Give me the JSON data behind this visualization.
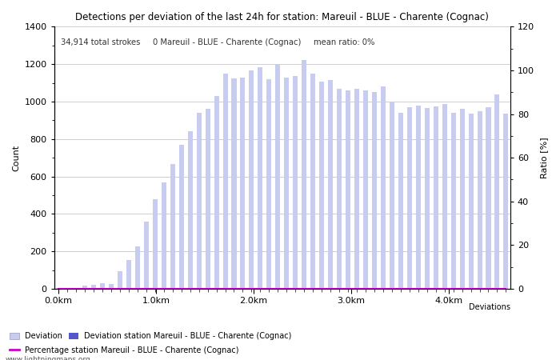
{
  "title": "Detections per deviation of the last 24h for station: Mareuil - BLUE - Charente (Cognac)",
  "annotation": "34,914 total strokes     0 Mareuil - BLUE - Charente (Cognac)     mean ratio: 0%",
  "ylabel_left": "Count",
  "ylabel_right": "Ratio [%]",
  "x_tick_labels": [
    "0.0km",
    "1.0km",
    "2.0km",
    "3.0km",
    "4.0km"
  ],
  "ylim_left": [
    0,
    1400
  ],
  "ylim_right": [
    0,
    120
  ],
  "yticks_left": [
    0,
    200,
    400,
    600,
    800,
    1000,
    1200,
    1400
  ],
  "yticks_right": [
    0,
    20,
    40,
    60,
    80,
    100,
    120
  ],
  "bar_color_light": "#c8ccf0",
  "bar_color_dark": "#5555cc",
  "line_color": "#cc00cc",
  "background_color": "#ffffff",
  "grid_color": "#bbbbbb",
  "watermark": "www.lightningmaps.org",
  "legend_label_deviation": "Deviation",
  "legend_label_station": "Deviation station Mareuil - BLUE - Charente (Cognac)",
  "legend_label_percentage": "Percentage station Mareuil - BLUE - Charente (Cognac)",
  "deviation_bars": [
    2,
    5,
    5,
    15,
    20,
    30,
    25,
    95,
    155,
    225,
    360,
    480,
    570,
    665,
    770,
    840,
    940,
    960,
    1030,
    1150,
    1125,
    1130,
    1165,
    1185,
    1120,
    1195,
    1130,
    1135,
    1220,
    1150,
    1105,
    1115,
    1070,
    1060,
    1070,
    1060,
    1050,
    1080,
    1000,
    940,
    970,
    980,
    965,
    975,
    985,
    940,
    960,
    935,
    950,
    970,
    1040,
    935
  ],
  "station_bars": [
    0,
    0,
    0,
    0,
    0,
    0,
    0,
    0,
    0,
    0,
    0,
    0,
    0,
    0,
    0,
    0,
    0,
    0,
    0,
    0,
    0,
    0,
    0,
    0,
    0,
    0,
    0,
    0,
    0,
    0,
    0,
    0,
    0,
    0,
    0,
    0,
    0,
    0,
    0,
    0,
    0,
    0,
    0,
    0,
    0,
    0,
    0,
    0,
    0,
    0,
    0,
    0
  ],
  "ratio_line": [
    0,
    0,
    0,
    0,
    0,
    0,
    0,
    0,
    0,
    0,
    0,
    0,
    0,
    0,
    0,
    0,
    0,
    0,
    0,
    0,
    0,
    0,
    0,
    0,
    0,
    0,
    0,
    0,
    0,
    0,
    0,
    0,
    0,
    0,
    0,
    0,
    0,
    0,
    0,
    0,
    0,
    0,
    0,
    0,
    0,
    0,
    0,
    0,
    0,
    0,
    0,
    0
  ],
  "n_bars": 52,
  "km_per_bar": 0.09,
  "x_tick_km": [
    0.0,
    1.0,
    2.0,
    3.0,
    4.0
  ]
}
